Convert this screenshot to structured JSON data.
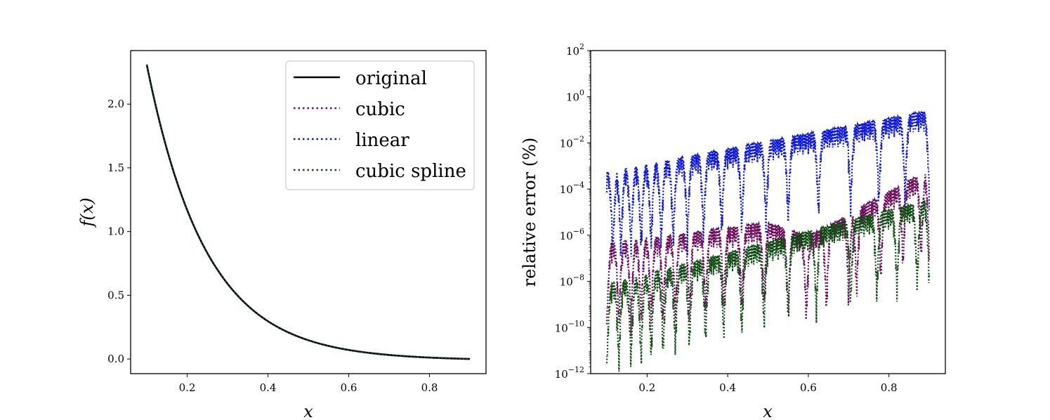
{
  "chart_data": [
    {
      "type": "line",
      "title": "",
      "xlabel": "x",
      "ylabel": "f(x)",
      "xlim": [
        0.06,
        0.94
      ],
      "ylim": [
        -0.115,
        2.42
      ],
      "xticks": [
        0.2,
        0.4,
        0.6,
        0.8
      ],
      "xtick_labels": [
        "0.2",
        "0.4",
        "0.6",
        "0.8"
      ],
      "yticks": [
        0.0,
        0.5,
        1.0,
        1.5,
        2.0
      ],
      "ytick_labels": [
        "0.0",
        "0.5",
        "1.0",
        "1.5",
        "2.0"
      ],
      "function": "f(x) = exp(-ln(231)*(x-0.1)/0.8)*2.31 - 0.0098*(x-0.1)/0.8",
      "x_range": [
        0.1,
        0.9
      ],
      "series": [
        {
          "name": "original",
          "color": "#000000",
          "style": "solid"
        },
        {
          "name": "cubic",
          "color": "#6b0a5a",
          "style": "dotted"
        },
        {
          "name": "linear",
          "color": "#0a14dc",
          "style": "dotted"
        },
        {
          "name": "cubic spline",
          "color": "#0e4a12",
          "style": "dotted"
        }
      ],
      "legend": {
        "position": "top-right",
        "entries": [
          "original",
          "cubic",
          "linear",
          "cubic spline"
        ]
      }
    },
    {
      "type": "line",
      "title": "",
      "xlabel": "x",
      "ylabel": "relative error (%)",
      "yscale": "log",
      "xlim": [
        0.06,
        0.94
      ],
      "ylim_log10": [
        -12,
        2
      ],
      "xticks": [
        0.2,
        0.4,
        0.6,
        0.8
      ],
      "xtick_labels": [
        "0.2",
        "0.4",
        "0.6",
        "0.8"
      ],
      "yticks_base": "10",
      "yticks_exp": [
        "2",
        "0",
        "−2",
        "−4",
        "−6",
        "−8",
        "−10",
        "−12"
      ],
      "series": [
        {
          "name": "linear",
          "color": "#0a14dc",
          "envelope_log10": [
            [
              0.1,
              -3.2
            ],
            [
              0.9,
              -0.55
            ]
          ],
          "dips": [
            0.115,
            0.135,
            0.16,
            0.185,
            0.21,
            0.235,
            0.265,
            0.3,
            0.34,
            0.385,
            0.435,
            0.495,
            0.55,
            0.625,
            0.705,
            0.775,
            0.84,
            0.9
          ]
        },
        {
          "name": "cubic",
          "color": "#6b0a5a",
          "envelope_log10": [
            [
              0.1,
              -6.3
            ],
            [
              0.5,
              -5.4
            ],
            [
              0.6,
              -6.0
            ],
            [
              0.9,
              -3.1
            ]
          ],
          "dips": [
            0.1,
            0.13,
            0.16,
            0.185,
            0.21,
            0.24,
            0.27,
            0.305,
            0.345,
            0.39,
            0.435,
            0.49,
            0.55,
            0.595,
            0.645,
            0.7,
            0.72,
            0.78,
            0.835,
            0.88,
            0.9
          ]
        },
        {
          "name": "cubic spline",
          "color": "#0e4a12",
          "envelope_log10": [
            [
              0.1,
              -8.1
            ],
            [
              0.9,
              -4.4
            ]
          ],
          "dips": [
            0.1,
            0.13,
            0.16,
            0.185,
            0.21,
            0.24,
            0.27,
            0.305,
            0.345,
            0.39,
            0.435,
            0.49,
            0.55,
            0.62,
            0.705,
            0.77,
            0.82,
            0.87,
            0.9
          ]
        }
      ]
    }
  ]
}
